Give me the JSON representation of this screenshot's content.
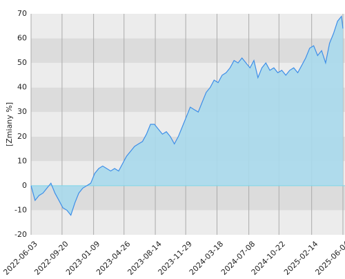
{
  "chart_data": {
    "type": "area",
    "y_label": "[Zmiany %]",
    "color": "#3d8ee8",
    "fill_color": "#a9d9ec",
    "x": [
      "2022-06-03",
      "2022-06-17",
      "2022-07-01",
      "2022-07-15",
      "2022-07-29",
      "2022-08-12",
      "2022-08-26",
      "2022-09-09",
      "2022-09-23",
      "2022-10-07",
      "2022-10-21",
      "2022-11-04",
      "2022-11-18",
      "2022-12-02",
      "2022-12-16",
      "2022-12-30",
      "2023-01-13",
      "2023-01-27",
      "2023-02-10",
      "2023-02-24",
      "2023-03-10",
      "2023-03-24",
      "2023-04-07",
      "2023-04-21",
      "2023-05-05",
      "2023-05-19",
      "2023-06-02",
      "2023-06-16",
      "2023-06-30",
      "2023-07-14",
      "2023-07-28",
      "2023-08-11",
      "2023-08-25",
      "2023-09-08",
      "2023-09-22",
      "2023-10-06",
      "2023-10-20",
      "2023-11-03",
      "2023-11-17",
      "2023-12-01",
      "2023-12-15",
      "2023-12-29",
      "2024-01-12",
      "2024-01-26",
      "2024-02-09",
      "2024-02-23",
      "2024-03-08",
      "2024-03-22",
      "2024-04-05",
      "2024-04-19",
      "2024-05-03",
      "2024-05-17",
      "2024-05-31",
      "2024-06-14",
      "2024-06-28",
      "2024-07-12",
      "2024-07-26",
      "2024-08-09",
      "2024-08-23",
      "2024-09-06",
      "2024-09-20",
      "2024-10-04",
      "2024-10-18",
      "2024-11-01",
      "2024-11-15",
      "2024-11-29",
      "2024-12-13",
      "2024-12-27",
      "2025-01-10",
      "2025-01-24",
      "2025-02-07",
      "2025-02-21",
      "2025-03-07",
      "2025-03-21",
      "2025-04-04",
      "2025-04-18",
      "2025-05-02",
      "2025-05-16",
      "2025-05-30",
      "2025-06-04"
    ],
    "values": [
      0,
      -6,
      -4,
      -3,
      -1,
      1,
      -3,
      -6,
      -9,
      -10,
      -12,
      -7,
      -3,
      -1,
      0,
      1,
      5,
      7,
      8,
      7,
      6,
      7,
      6,
      9,
      12,
      14,
      16,
      17,
      18,
      21,
      25,
      25,
      23,
      21,
      22,
      20,
      17,
      20,
      24,
      28,
      32,
      31,
      30,
      34,
      38,
      40,
      43,
      42,
      45,
      46,
      48,
      51,
      50,
      52,
      50,
      48,
      51,
      44,
      48,
      50,
      47,
      48,
      46,
      47,
      45,
      47,
      48,
      46,
      49,
      52,
      56,
      57,
      53,
      55,
      50,
      58,
      62,
      67,
      69,
      64
    ],
    "xlim": [
      "2022-06-03",
      "2025-06-04"
    ],
    "xticks": [
      "2022-06-03",
      "2022-09-20",
      "2023-01-09",
      "2023-04-26",
      "2023-08-14",
      "2023-11-29",
      "2024-03-18",
      "2024-07-08",
      "2024-10-22",
      "2025-02-14",
      "2025-06-04"
    ],
    "ylim": [
      -20,
      70
    ],
    "yticks": [
      -20,
      -10,
      0,
      10,
      20,
      30,
      40,
      50,
      60,
      70
    ],
    "grid": true
  }
}
